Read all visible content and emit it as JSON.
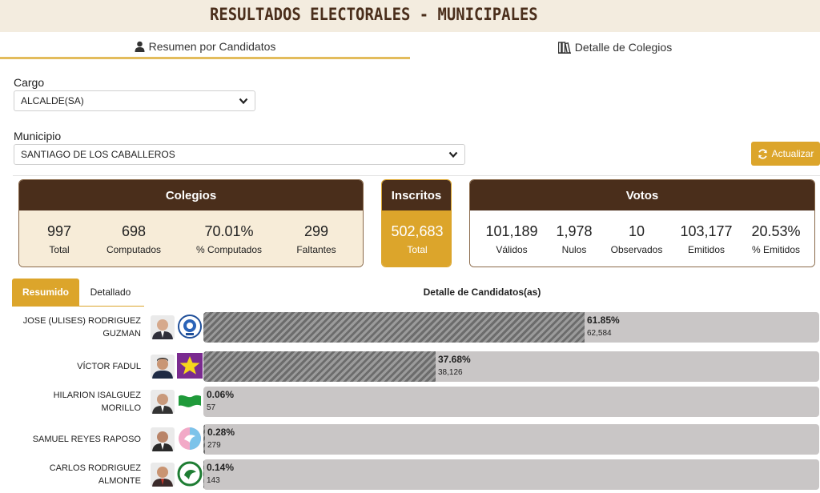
{
  "header": {
    "title": "RESULTADOS ELECTORALES - MUNICIPALES"
  },
  "tabs": [
    {
      "label": "Resumen por Candidatos",
      "icon": "user-icon",
      "active": true
    },
    {
      "label": "Detalle de Colegios",
      "icon": "books-icon",
      "active": false
    }
  ],
  "filters": {
    "cargo": {
      "label": "Cargo",
      "value": "ALCALDE(SA)"
    },
    "municipio": {
      "label": "Municipio",
      "value": "SANTIAGO DE LOS CABALLEROS"
    }
  },
  "refresh_label": "Actualizar",
  "colegios": {
    "title": "Colegios",
    "stats": [
      {
        "value": "997",
        "label": "Total"
      },
      {
        "value": "698",
        "label": "Computados"
      },
      {
        "value": "70.01%",
        "label": "% Computados"
      },
      {
        "value": "299",
        "label": "Faltantes"
      }
    ]
  },
  "inscritos": {
    "title": "Inscritos",
    "value": "502,683",
    "label": "Total"
  },
  "votos": {
    "title": "Votos",
    "stats": [
      {
        "value": "101,189",
        "label": "Válidos"
      },
      {
        "value": "1,978",
        "label": "Nulos"
      },
      {
        "value": "10",
        "label": "Observados"
      },
      {
        "value": "103,177",
        "label": "Emitidos"
      },
      {
        "value": "20.53%",
        "label": "% Emitidos"
      }
    ]
  },
  "subtabs": {
    "resumido": "Resumido",
    "detallado": "Detallado"
  },
  "detalle_title": "Detalle de Candidatos(as)",
  "colors": {
    "brown": "#4a2e1b",
    "gold": "#dca52b",
    "cream": "#f7ecd8",
    "bar_track": "#c9c6c6"
  },
  "candidates": [
    {
      "name": "JOSE (ULISES) RODRIGUEZ GUZMAN",
      "pct": "61.85%",
      "votes": "62,584",
      "share": 61.85,
      "logo": "party-seal-logo"
    },
    {
      "name": "VÍCTOR FADUL",
      "pct": "37.68%",
      "votes": "38,126",
      "share": 37.68,
      "logo": "purple-star-logo"
    },
    {
      "name": "HILARION ISALGUEZ MORILLO",
      "pct": "0.06%",
      "votes": "57",
      "share": 0.06,
      "logo": "green-flag-logo"
    },
    {
      "name": "SAMUEL REYES RAPOSO",
      "pct": "0.28%",
      "votes": "279",
      "share": 0.28,
      "logo": "dove-circle-logo"
    },
    {
      "name": "CARLOS RODRIGUEZ ALMONTE",
      "pct": "0.14%",
      "votes": "143",
      "share": 0.14,
      "logo": "green-ring-logo"
    }
  ]
}
